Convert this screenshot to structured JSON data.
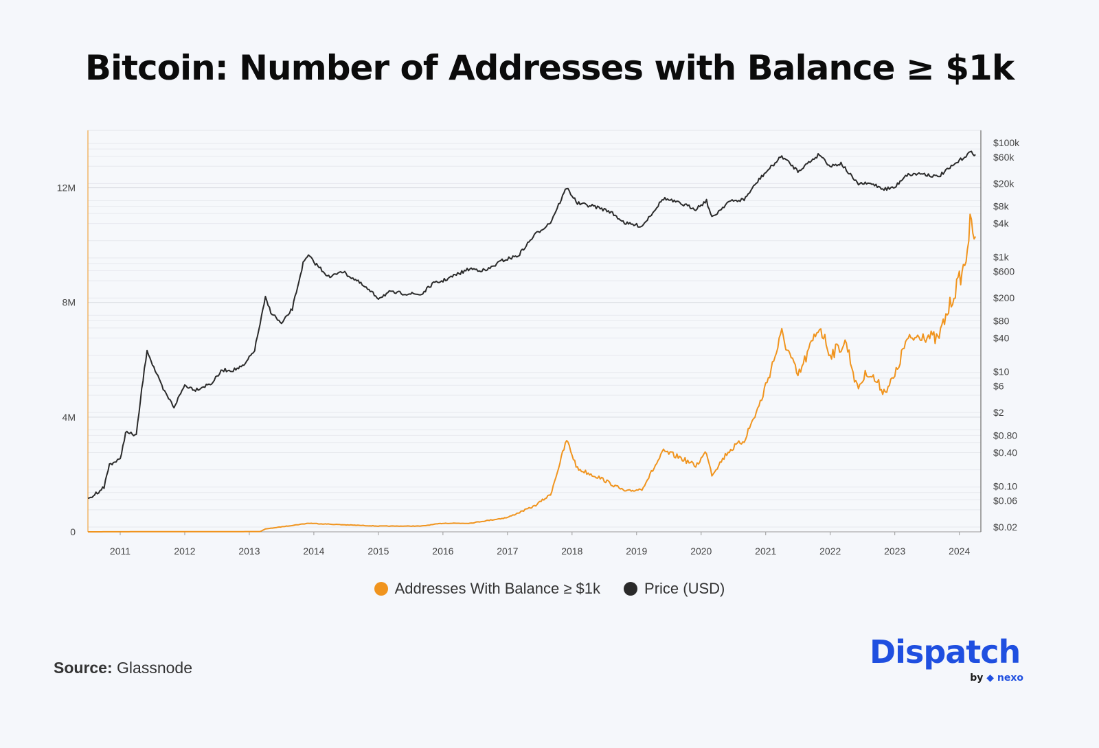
{
  "title": "Bitcoin: Number of Addresses with Balance ≥ $1k",
  "source_label": "Source:",
  "source_value": "Glassnode",
  "logo": {
    "name": "Dispatch",
    "by": "by",
    "partner": "nexo"
  },
  "colors": {
    "addresses": "#f0941e",
    "price": "#2a2a2a",
    "background": "#f5f7fb",
    "brand": "#1f4fe0"
  },
  "chart_data": {
    "type": "line",
    "title": "Bitcoin: Number of Addresses with Balance ≥ $1k",
    "grid": true,
    "legend_position": "bottom-center",
    "x_ticks": [
      "2011",
      "2012",
      "2013",
      "2014",
      "2015",
      "2016",
      "2017",
      "2018",
      "2019",
      "2020",
      "2021",
      "2022",
      "2023",
      "2024"
    ],
    "xlim": [
      "2010-07",
      "2024-05"
    ],
    "left_axis": {
      "scale": "linear",
      "ylim": [
        0,
        14000000
      ],
      "ticks": [
        {
          "v": 0,
          "label": "0"
        },
        {
          "v": 4000000,
          "label": "4M"
        },
        {
          "v": 8000000,
          "label": "8M"
        },
        {
          "v": 12000000,
          "label": "12M"
        }
      ]
    },
    "right_axis": {
      "scale": "log",
      "ylim": [
        0.0165,
        169000
      ],
      "ticks": [
        {
          "v": 100000,
          "label": "$100k"
        },
        {
          "v": 60000,
          "label": "$60k"
        },
        {
          "v": 20000,
          "label": "$20k"
        },
        {
          "v": 8000,
          "label": "$8k"
        },
        {
          "v": 4000,
          "label": "$4k"
        },
        {
          "v": 1000,
          "label": "$1k"
        },
        {
          "v": 600,
          "label": "$600"
        },
        {
          "v": 200,
          "label": "$200"
        },
        {
          "v": 80,
          "label": "$80"
        },
        {
          "v": 40,
          "label": "$40"
        },
        {
          "v": 10,
          "label": "$10"
        },
        {
          "v": 6,
          "label": "$6"
        },
        {
          "v": 2,
          "label": "$2"
        },
        {
          "v": 0.8,
          "label": "$0.80"
        },
        {
          "v": 0.4,
          "label": "$0.40"
        },
        {
          "v": 0.1,
          "label": "$0.10"
        },
        {
          "v": 0.06,
          "label": "$0.06"
        },
        {
          "v": 0.02,
          "label": "$0.02"
        }
      ]
    },
    "series": [
      {
        "name": "Addresses With Balance ≥ $1k",
        "axis": "left",
        "points": [
          [
            "2010-07",
            0
          ],
          [
            "2011-06",
            5000
          ],
          [
            "2012-06",
            5000
          ],
          [
            "2013-03",
            10000
          ],
          [
            "2013-04",
            100000
          ],
          [
            "2013-12",
            300000
          ],
          [
            "2014-06",
            250000
          ],
          [
            "2015-01",
            200000
          ],
          [
            "2015-09",
            200000
          ],
          [
            "2016-01",
            300000
          ],
          [
            "2016-06",
            300000
          ],
          [
            "2017-01",
            500000
          ],
          [
            "2017-06",
            900000
          ],
          [
            "2017-09",
            1300000
          ],
          [
            "2017-12",
            3200000
          ],
          [
            "2018-02",
            2200000
          ],
          [
            "2018-06",
            1900000
          ],
          [
            "2018-11",
            1400000
          ],
          [
            "2019-02",
            1500000
          ],
          [
            "2019-06",
            2800000
          ],
          [
            "2019-09",
            2600000
          ],
          [
            "2019-12",
            2300000
          ],
          [
            "2020-02",
            2800000
          ],
          [
            "2020-03",
            2000000
          ],
          [
            "2020-06",
            2800000
          ],
          [
            "2020-09",
            3200000
          ],
          [
            "2020-12",
            4500000
          ],
          [
            "2021-04",
            6900000
          ],
          [
            "2021-07",
            5400000
          ],
          [
            "2021-11",
            7200000
          ],
          [
            "2022-01",
            6200000
          ],
          [
            "2022-04",
            6600000
          ],
          [
            "2022-06",
            5000000
          ],
          [
            "2022-08",
            5600000
          ],
          [
            "2022-11",
            4900000
          ],
          [
            "2023-01",
            5400000
          ],
          [
            "2023-03",
            6600000
          ],
          [
            "2023-06",
            6900000
          ],
          [
            "2023-09",
            6700000
          ],
          [
            "2023-12",
            8300000
          ],
          [
            "2024-02",
            9300000
          ],
          [
            "2024-03",
            10700000
          ],
          [
            "2024-04",
            10300000
          ]
        ]
      },
      {
        "name": "Price (USD)",
        "axis": "right",
        "points": [
          [
            "2010-07",
            0.06
          ],
          [
            "2010-10",
            0.1
          ],
          [
            "2010-11",
            0.25
          ],
          [
            "2011-01",
            0.3
          ],
          [
            "2011-02",
            0.9
          ],
          [
            "2011-04",
            0.8
          ],
          [
            "2011-05",
            5
          ],
          [
            "2011-06",
            25
          ],
          [
            "2011-07",
            14
          ],
          [
            "2011-09",
            5
          ],
          [
            "2011-11",
            2.5
          ],
          [
            "2012-01",
            6
          ],
          [
            "2012-03",
            5
          ],
          [
            "2012-06",
            6.5
          ],
          [
            "2012-08",
            11
          ],
          [
            "2012-10",
            11
          ],
          [
            "2012-12",
            13
          ],
          [
            "2013-02",
            25
          ],
          [
            "2013-04",
            200
          ],
          [
            "2013-05",
            115
          ],
          [
            "2013-07",
            70
          ],
          [
            "2013-09",
            130
          ],
          [
            "2013-11",
            800
          ],
          [
            "2013-12",
            1100
          ],
          [
            "2014-01",
            850
          ],
          [
            "2014-04",
            450
          ],
          [
            "2014-06",
            600
          ],
          [
            "2014-09",
            400
          ],
          [
            "2015-01",
            200
          ],
          [
            "2015-03",
            250
          ],
          [
            "2015-06",
            240
          ],
          [
            "2015-09",
            230
          ],
          [
            "2015-11",
            350
          ],
          [
            "2016-01",
            400
          ],
          [
            "2016-06",
            650
          ],
          [
            "2016-09",
            600
          ],
          [
            "2016-12",
            900
          ],
          [
            "2017-03",
            1100
          ],
          [
            "2017-06",
            2500
          ],
          [
            "2017-09",
            4200
          ],
          [
            "2017-12",
            17000
          ],
          [
            "2018-02",
            9000
          ],
          [
            "2018-05",
            8000
          ],
          [
            "2018-08",
            6500
          ],
          [
            "2018-11",
            4000
          ],
          [
            "2019-02",
            3600
          ],
          [
            "2019-06",
            11000
          ],
          [
            "2019-09",
            9000
          ],
          [
            "2019-12",
            7200
          ],
          [
            "2020-02",
            10000
          ],
          [
            "2020-03",
            5000
          ],
          [
            "2020-06",
            9500
          ],
          [
            "2020-09",
            10500
          ],
          [
            "2020-12",
            25000
          ],
          [
            "2021-04",
            60000
          ],
          [
            "2021-07",
            33000
          ],
          [
            "2021-11",
            65000
          ],
          [
            "2022-01",
            40000
          ],
          [
            "2022-03",
            45000
          ],
          [
            "2022-06",
            20000
          ],
          [
            "2022-09",
            19500
          ],
          [
            "2022-11",
            16000
          ],
          [
            "2023-01",
            17000
          ],
          [
            "2023-03",
            28000
          ],
          [
            "2023-06",
            30000
          ],
          [
            "2023-09",
            26000
          ],
          [
            "2023-12",
            42000
          ],
          [
            "2024-03",
            70000
          ],
          [
            "2024-04",
            64000
          ]
        ]
      }
    ]
  }
}
